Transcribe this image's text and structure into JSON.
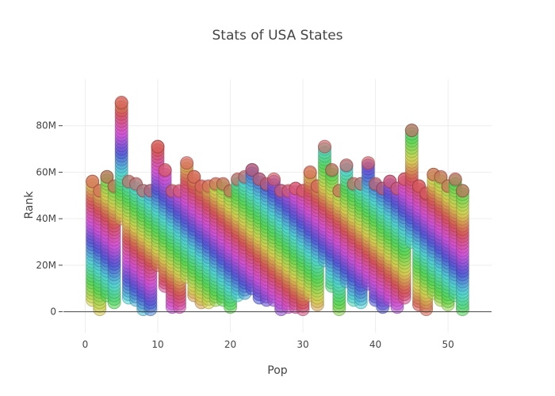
{
  "chart_data": {
    "type": "scatter",
    "title": "Stats of USA States",
    "xlabel": "Pop",
    "ylabel": "Rank",
    "xlim": [
      -3,
      56
    ],
    "ylim": [
      -9000000,
      100000000
    ],
    "x_ticks": [
      0,
      10,
      20,
      30,
      40,
      50
    ],
    "x_tick_labels": [
      "0",
      "10",
      "20",
      "30",
      "40",
      "50"
    ],
    "y_ticks": [
      0,
      20000000,
      40000000,
      60000000,
      80000000
    ],
    "y_tick_labels": [
      "0",
      "20M",
      "40M",
      "60M",
      "80M"
    ],
    "grid": true,
    "marker": {
      "size": 16,
      "opacity": 0.6,
      "colorscale": "rainbow-by-point-index"
    },
    "series": [
      {
        "description": "vertical column of markers at each x; ymin/ymax are the lowest and highest marker values",
        "x": [
          1,
          2,
          3,
          4,
          5,
          6,
          7,
          8,
          9,
          10,
          11,
          12,
          13,
          14,
          15,
          16,
          17,
          18,
          19,
          20,
          21,
          22,
          23,
          24,
          25,
          26,
          27,
          28,
          29,
          30,
          31,
          32,
          33,
          34,
          35,
          36,
          37,
          38,
          39,
          40,
          41,
          42,
          43,
          44,
          45,
          46,
          47,
          48,
          49,
          50,
          51,
          52
        ],
        "ymin": [
          5000000,
          1000000,
          7000000,
          4000000,
          40000000,
          6000000,
          5000000,
          1000000,
          1000000,
          20000000,
          11000000,
          2000000,
          2000000,
          15000000,
          7000000,
          4000000,
          4000000,
          5000000,
          5000000,
          2000000,
          7000000,
          8000000,
          10000000,
          6000000,
          5000000,
          5000000,
          1000000,
          2000000,
          2000000,
          1000000,
          7000000,
          3000000,
          22000000,
          11000000,
          1000000,
          13000000,
          5000000,
          4000000,
          12000000,
          5000000,
          2000000,
          5000000,
          2000000,
          6000000,
          30000000,
          3000000,
          1000000,
          8000000,
          5000000,
          3000000,
          7000000,
          1000000
        ],
        "ymax": [
          56000000,
          52000000,
          58000000,
          54000000,
          90000000,
          56000000,
          55000000,
          52000000,
          52000000,
          71000000,
          61000000,
          52000000,
          52000000,
          64000000,
          58000000,
          54000000,
          54000000,
          55000000,
          55000000,
          52000000,
          57000000,
          58000000,
          61000000,
          57000000,
          55000000,
          57000000,
          52000000,
          52000000,
          53000000,
          52000000,
          60000000,
          54000000,
          71000000,
          61000000,
          52000000,
          63000000,
          55000000,
          55000000,
          64000000,
          55000000,
          53000000,
          56000000,
          53000000,
          57000000,
          78000000,
          54000000,
          51000000,
          59000000,
          58000000,
          54000000,
          57000000,
          52000000
        ]
      }
    ]
  }
}
